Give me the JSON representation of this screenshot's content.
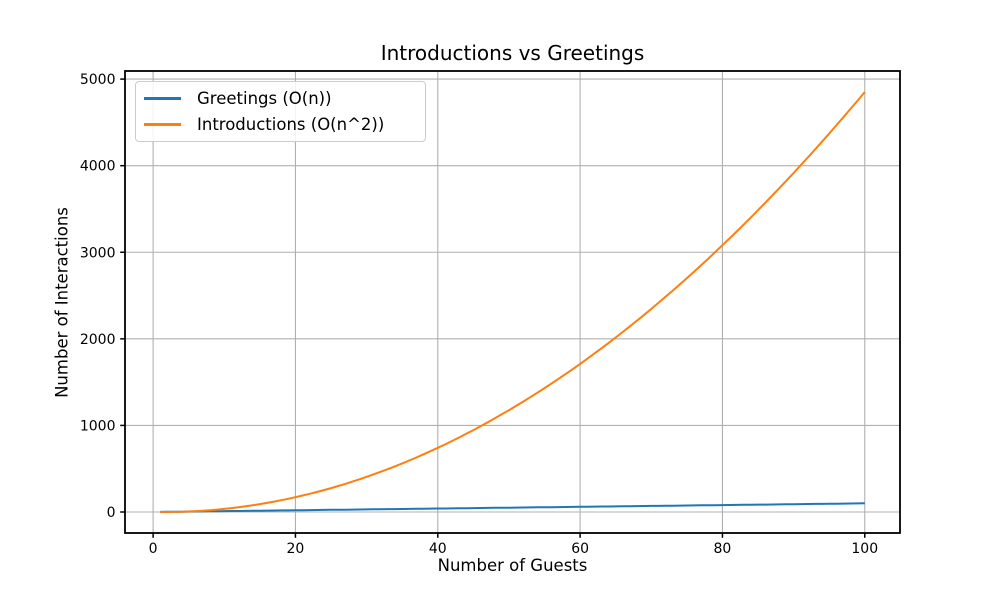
{
  "figure": {
    "background": "#ffffff"
  },
  "chart_data": {
    "type": "line",
    "title": "Introductions vs Greetings",
    "xlabel": "Number of Guests",
    "ylabel": "Number of Interactions",
    "x": [
      1,
      2,
      3,
      4,
      5,
      6,
      7,
      8,
      9,
      10,
      11,
      12,
      13,
      14,
      15,
      16,
      17,
      18,
      19,
      20,
      21,
      22,
      23,
      24,
      25,
      26,
      27,
      28,
      29,
      30,
      31,
      32,
      33,
      34,
      35,
      36,
      37,
      38,
      39,
      40,
      41,
      42,
      43,
      44,
      45,
      46,
      47,
      48,
      49,
      50,
      51,
      52,
      53,
      54,
      55,
      56,
      57,
      58,
      59,
      60,
      61,
      62,
      63,
      64,
      65,
      66,
      67,
      68,
      69,
      70,
      71,
      72,
      73,
      74,
      75,
      76,
      77,
      78,
      79,
      80,
      81,
      82,
      83,
      84,
      85,
      86,
      87,
      88,
      89,
      90,
      91,
      92,
      93,
      94,
      95,
      96,
      97,
      98,
      99,
      100
    ],
    "series": [
      {
        "name": "Greetings (O(n))",
        "color": "#1f77b4",
        "values": [
          1,
          2,
          3,
          4,
          5,
          6,
          7,
          8,
          9,
          10,
          11,
          12,
          13,
          14,
          15,
          16,
          17,
          18,
          19,
          20,
          21,
          22,
          23,
          24,
          25,
          26,
          27,
          28,
          29,
          30,
          31,
          32,
          33,
          34,
          35,
          36,
          37,
          38,
          39,
          40,
          41,
          42,
          43,
          44,
          45,
          46,
          47,
          48,
          49,
          50,
          51,
          52,
          53,
          54,
          55,
          56,
          57,
          58,
          59,
          60,
          61,
          62,
          63,
          64,
          65,
          66,
          67,
          68,
          69,
          70,
          71,
          72,
          73,
          74,
          75,
          76,
          77,
          78,
          79,
          80,
          81,
          82,
          83,
          84,
          85,
          86,
          87,
          88,
          89,
          90,
          91,
          92,
          93,
          94,
          95,
          96,
          97,
          98,
          99,
          100
        ]
      },
      {
        "name": "Introductions (O(n^2))",
        "color": "#ff7f0e",
        "values": [
          0,
          0,
          1,
          3,
          6,
          10,
          15,
          21,
          28,
          36,
          45,
          55,
          66,
          78,
          91,
          105,
          120,
          136,
          153,
          171,
          190,
          210,
          231,
          253,
          276,
          300,
          325,
          351,
          378,
          406,
          435,
          465,
          496,
          528,
          561,
          595,
          630,
          666,
          703,
          741,
          780,
          820,
          861,
          903,
          946,
          990,
          1035,
          1081,
          1128,
          1176,
          1225,
          1275,
          1326,
          1378,
          1431,
          1485,
          1540,
          1596,
          1653,
          1711,
          1770,
          1830,
          1891,
          1953,
          2016,
          2080,
          2145,
          2211,
          2278,
          2346,
          2415,
          2485,
          2556,
          2628,
          2701,
          2775,
          2850,
          2926,
          3003,
          3081,
          3160,
          3240,
          3321,
          3403,
          3486,
          3570,
          3655,
          3741,
          3828,
          3916,
          4005,
          4095,
          4186,
          4278,
          4371,
          4465,
          4560,
          4656,
          4753,
          4851
        ]
      }
    ],
    "xlim": [
      -3.95,
      104.95
    ],
    "ylim": [
      -242.55,
      5093.55
    ],
    "xticks": [
      0,
      20,
      40,
      60,
      80,
      100
    ],
    "yticks": [
      0,
      1000,
      2000,
      3000,
      4000,
      5000
    ],
    "grid": true,
    "grid_color": "#b0b0b0",
    "legend_position": "upper-left"
  }
}
